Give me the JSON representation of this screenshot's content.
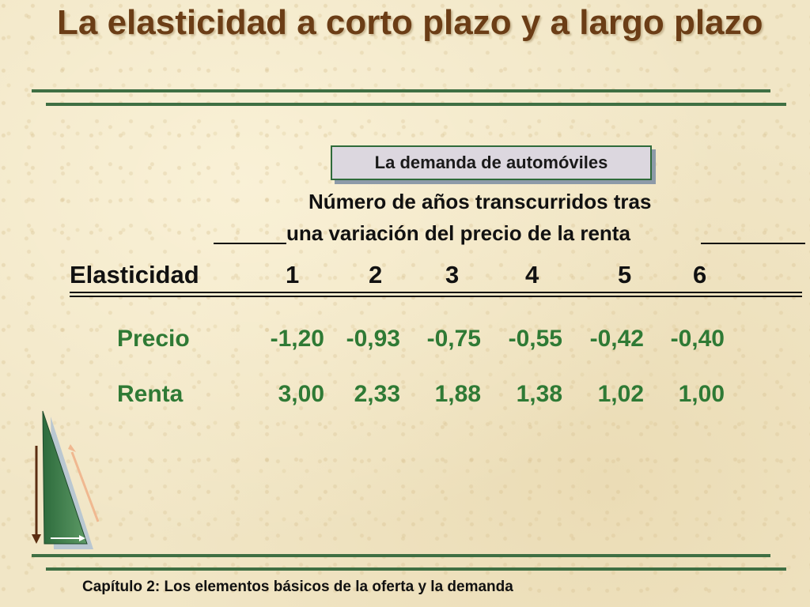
{
  "slide": {
    "title": "La elasticidad a corto plazo y a largo plazo",
    "box_label": "La demanda de automóviles",
    "subheading_line1": "Número de años transcurridos tras",
    "subheading_line2": "una variación del precio de la renta",
    "footer": "Capítulo 2: Los elementos básicos de la oferta y la demanda"
  },
  "table": {
    "header_label": "Elasticidad",
    "years": [
      "1",
      "2",
      "3",
      "4",
      "5",
      "6"
    ],
    "rows": [
      {
        "label": "Precio",
        "values": [
          "-1,20",
          "-0,93",
          "-0,75",
          "-0,55",
          "-0,42",
          "-0,40"
        ]
      },
      {
        "label": "Renta",
        "values": [
          "3,00",
          "2,33",
          "1,88",
          "1,38",
          "1,02",
          "1,00"
        ]
      }
    ]
  },
  "colors": {
    "title": "#6b3d16",
    "rule": "#3f6f43",
    "table_values": "#2f7a35",
    "background": "#f1e6c6"
  }
}
